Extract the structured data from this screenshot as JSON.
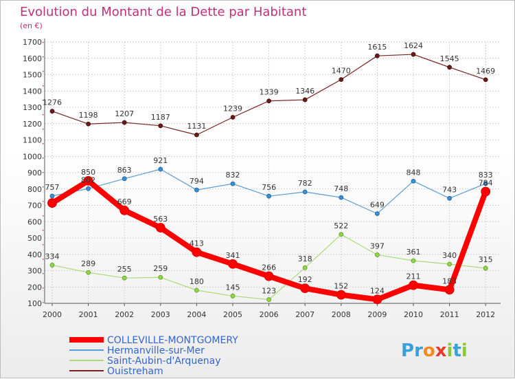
{
  "chart_data": {
    "type": "line",
    "title": "Evolution du Montant de la Dette par Habitant",
    "subtitle": "(en €)",
    "categories": [
      "2000",
      "2001",
      "2002",
      "2003",
      "2004",
      "2005",
      "2006",
      "2007",
      "2008",
      "2009",
      "2010",
      "2011",
      "2012"
    ],
    "ylim": [
      100,
      1700
    ],
    "yticks": [
      100,
      200,
      300,
      400,
      500,
      600,
      700,
      800,
      900,
      1000,
      1100,
      1200,
      1300,
      1400,
      1500,
      1600,
      1700
    ],
    "grid": true,
    "legend": "bottom-left",
    "series": [
      {
        "name": "COLLEVILLE-MONTGOMERY",
        "color": "#ff0000",
        "values": [
          714,
          850,
          669,
          563,
          413,
          341,
          266,
          192,
          152,
          124,
          211,
          183,
          784
        ]
      },
      {
        "name": "Hermanville-sur-Mer",
        "color": "#5b9bd5",
        "values": [
          757,
          802,
          863,
          921,
          794,
          832,
          756,
          782,
          748,
          649,
          848,
          743,
          833
        ]
      },
      {
        "name": "Saint-Aubin-d'Arquenay",
        "color": "#a9dc76",
        "values": [
          334,
          289,
          255,
          259,
          180,
          145,
          123,
          318,
          522,
          397,
          361,
          340,
          315
        ]
      },
      {
        "name": "Ouistreham",
        "color": "#7b2020",
        "values": [
          1276,
          1198,
          1207,
          1187,
          1131,
          1239,
          1339,
          1346,
          1470,
          1615,
          1624,
          1545,
          1469
        ]
      }
    ],
    "labels": {
      "COLLEVILLE-MONTGOMERY": [
        "",
        "850",
        "669",
        "563",
        "413",
        "341",
        "266",
        "192",
        "152",
        "124",
        "211",
        "183",
        "784"
      ],
      "Hermanville-sur-Mer": [
        "757",
        "802",
        "863",
        "921",
        "794",
        "832",
        "756",
        "782",
        "748",
        "649",
        "848",
        "743",
        "833"
      ],
      "Saint-Aubin-d'Arquenay": [
        "334",
        "289",
        "255",
        "259",
        "180",
        "145",
        "123",
        "318",
        "522",
        "397",
        "361",
        "340",
        "315"
      ],
      "Ouistreham": [
        "1276",
        "1198",
        "1207",
        "1187",
        "1131",
        "1239",
        "1339",
        "1346",
        "1470",
        "1615",
        "1624",
        "1545",
        "1469"
      ]
    }
  },
  "watermark": {
    "text": "Proxiti"
  }
}
